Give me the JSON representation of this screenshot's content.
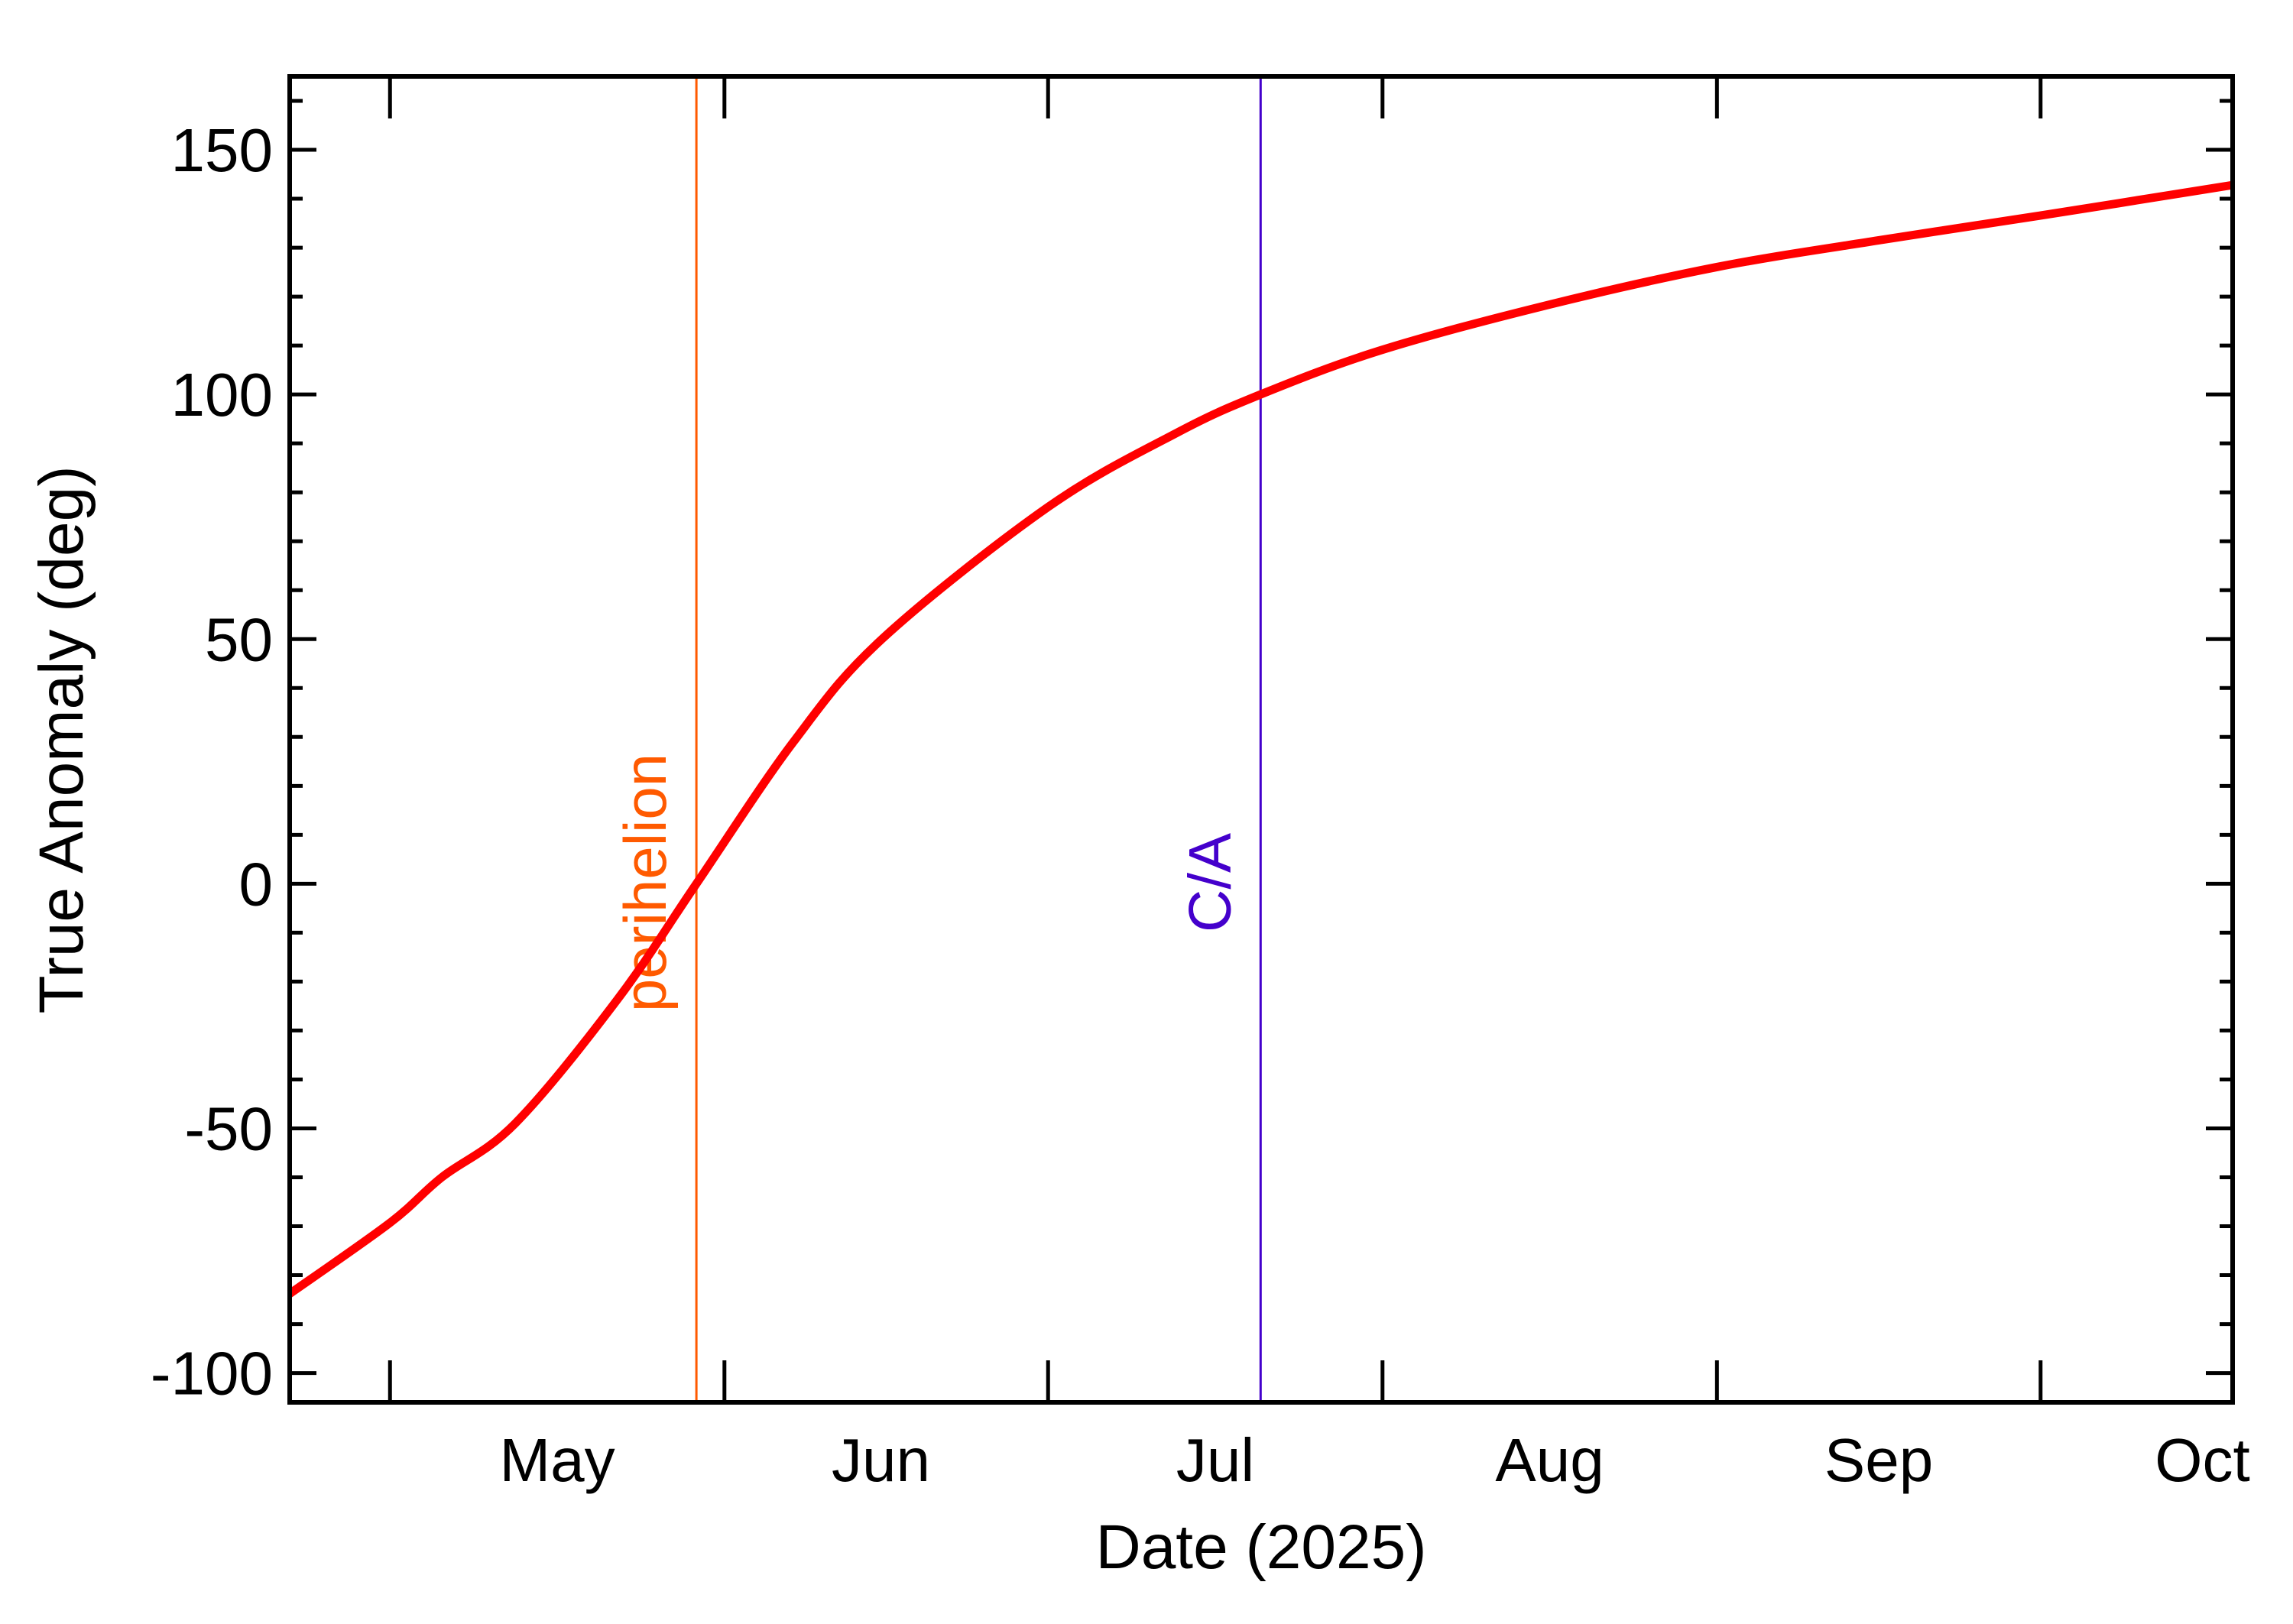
{
  "chart_data": {
    "type": "line",
    "title": "",
    "xlabel": "Date (2025)",
    "ylabel": "True Anomaly (deg)",
    "x_units": "days since 2025-05-01",
    "xlim": [
      -9.3,
      170.8
    ],
    "ylim": [
      -106,
      165
    ],
    "x_ticks": [
      0,
      31,
      61,
      92,
      123,
      153
    ],
    "x_tick_labels": [
      {
        "label": "May",
        "at": 15.5
      },
      {
        "label": "Jun",
        "at": 45.5
      },
      {
        "label": "Jul",
        "at": 76.5
      },
      {
        "label": "Aug",
        "at": 107.5
      },
      {
        "label": "Sep",
        "at": 138
      },
      {
        "label": "Oct",
        "at": 168
      }
    ],
    "y_ticks": [
      -100,
      -50,
      0,
      50,
      100,
      150
    ],
    "y_tick_labels": [
      "-100",
      "-50",
      "0",
      "50",
      "100",
      "150"
    ],
    "y_minor_step": 10,
    "grid": false,
    "series": [
      {
        "name": "True Anomaly",
        "color": "#FF0000",
        "x": [
          -9.3,
          0,
          4.8,
          11.6,
          21.1,
          28.4,
          37.4,
          45.6,
          61,
          72.8,
          80.7,
          91.8,
          106.8,
          122.9,
          138,
          152.8,
          170.8
        ],
        "y": [
          -83.8,
          -69.3,
          -60,
          -49,
          -23.6,
          0,
          29,
          50,
          77,
          92,
          100,
          109,
          118,
          126,
          131.5,
          136.5,
          142.8
        ]
      }
    ],
    "annotations": [
      {
        "label": "perihelion",
        "x": 28.4,
        "color": "#FF5A00"
      },
      {
        "label": "C/A",
        "x": 80.7,
        "color": "#4400CC"
      }
    ]
  }
}
